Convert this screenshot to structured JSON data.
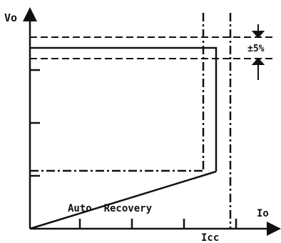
{
  "labels": {
    "y_axis": "Vo",
    "x_axis": "Io",
    "tolerance": "±5%",
    "region": "Auto  Recovery",
    "current_limit": "Icc"
  },
  "colors": {
    "ink": "#111111",
    "background": "#ffffff"
  }
}
